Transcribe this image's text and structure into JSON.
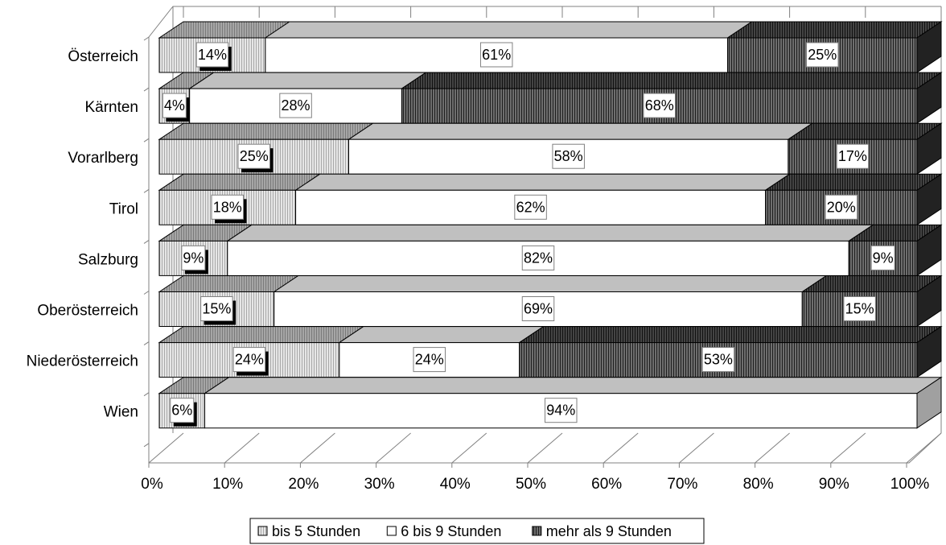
{
  "chart_data": {
    "type": "bar",
    "orientation": "horizontal",
    "stacked": "percent",
    "three_d": true,
    "categories": [
      "Österreich",
      "Kärnten",
      "Vorarlberg",
      "Tirol",
      "Salzburg",
      "Oberösterreich",
      "Niederösterreich",
      "Wien"
    ],
    "series": [
      {
        "name": "bis 5 Stunden",
        "values": [
          14,
          4,
          25,
          18,
          9,
          15,
          24,
          6
        ],
        "labels": [
          "14%",
          "4%",
          "25%",
          "18%",
          "9%",
          "15%",
          "24%",
          "6%"
        ],
        "color": "#d9d9d9",
        "pattern": "fine-vertical-light"
      },
      {
        "name": "6 bis 9 Stunden",
        "values": [
          61,
          28,
          58,
          62,
          82,
          69,
          24,
          94
        ],
        "labels": [
          "61%",
          "28%",
          "58%",
          "62%",
          "82%",
          "69%",
          "24%",
          "94%"
        ],
        "color": "#ffffff",
        "pattern": "none"
      },
      {
        "name": "mehr als 9 Stunden",
        "values": [
          25,
          68,
          17,
          20,
          9,
          15,
          53,
          0
        ],
        "labels": [
          "25%",
          "68%",
          "17%",
          "20%",
          "9%",
          "15%",
          "53%",
          ""
        ],
        "color": "#3c3c3c",
        "pattern": "vertical-dark"
      }
    ],
    "xlim": [
      0,
      100
    ],
    "x_ticks": [
      "0%",
      "10%",
      "20%",
      "30%",
      "40%",
      "50%",
      "60%",
      "70%",
      "80%",
      "90%",
      "100%"
    ],
    "grid": "vertical",
    "legend_position": "bottom",
    "title": "",
    "xlabel": "",
    "ylabel": ""
  }
}
